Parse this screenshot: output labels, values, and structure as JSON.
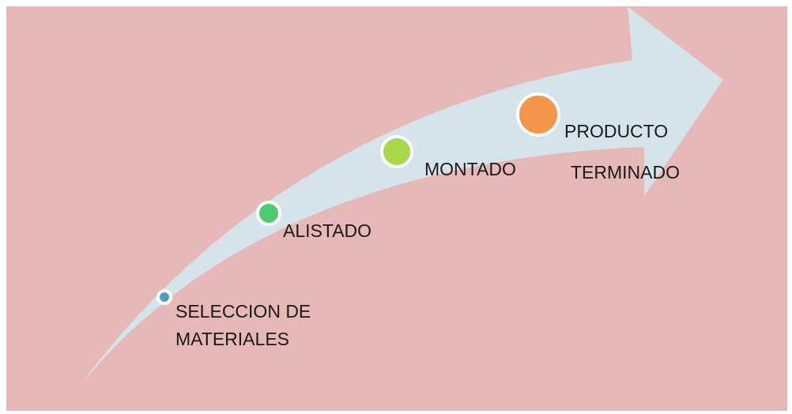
{
  "nodes": [
    {
      "lines": [
        "SELECCION DE",
        "MATERIALES"
      ]
    },
    {
      "lines": [
        "ALISTADO"
      ]
    },
    {
      "lines": [
        "MONTADO"
      ]
    },
    {
      "lines": [
        "PRODUCTO",
        "TERMINADO"
      ]
    }
  ]
}
